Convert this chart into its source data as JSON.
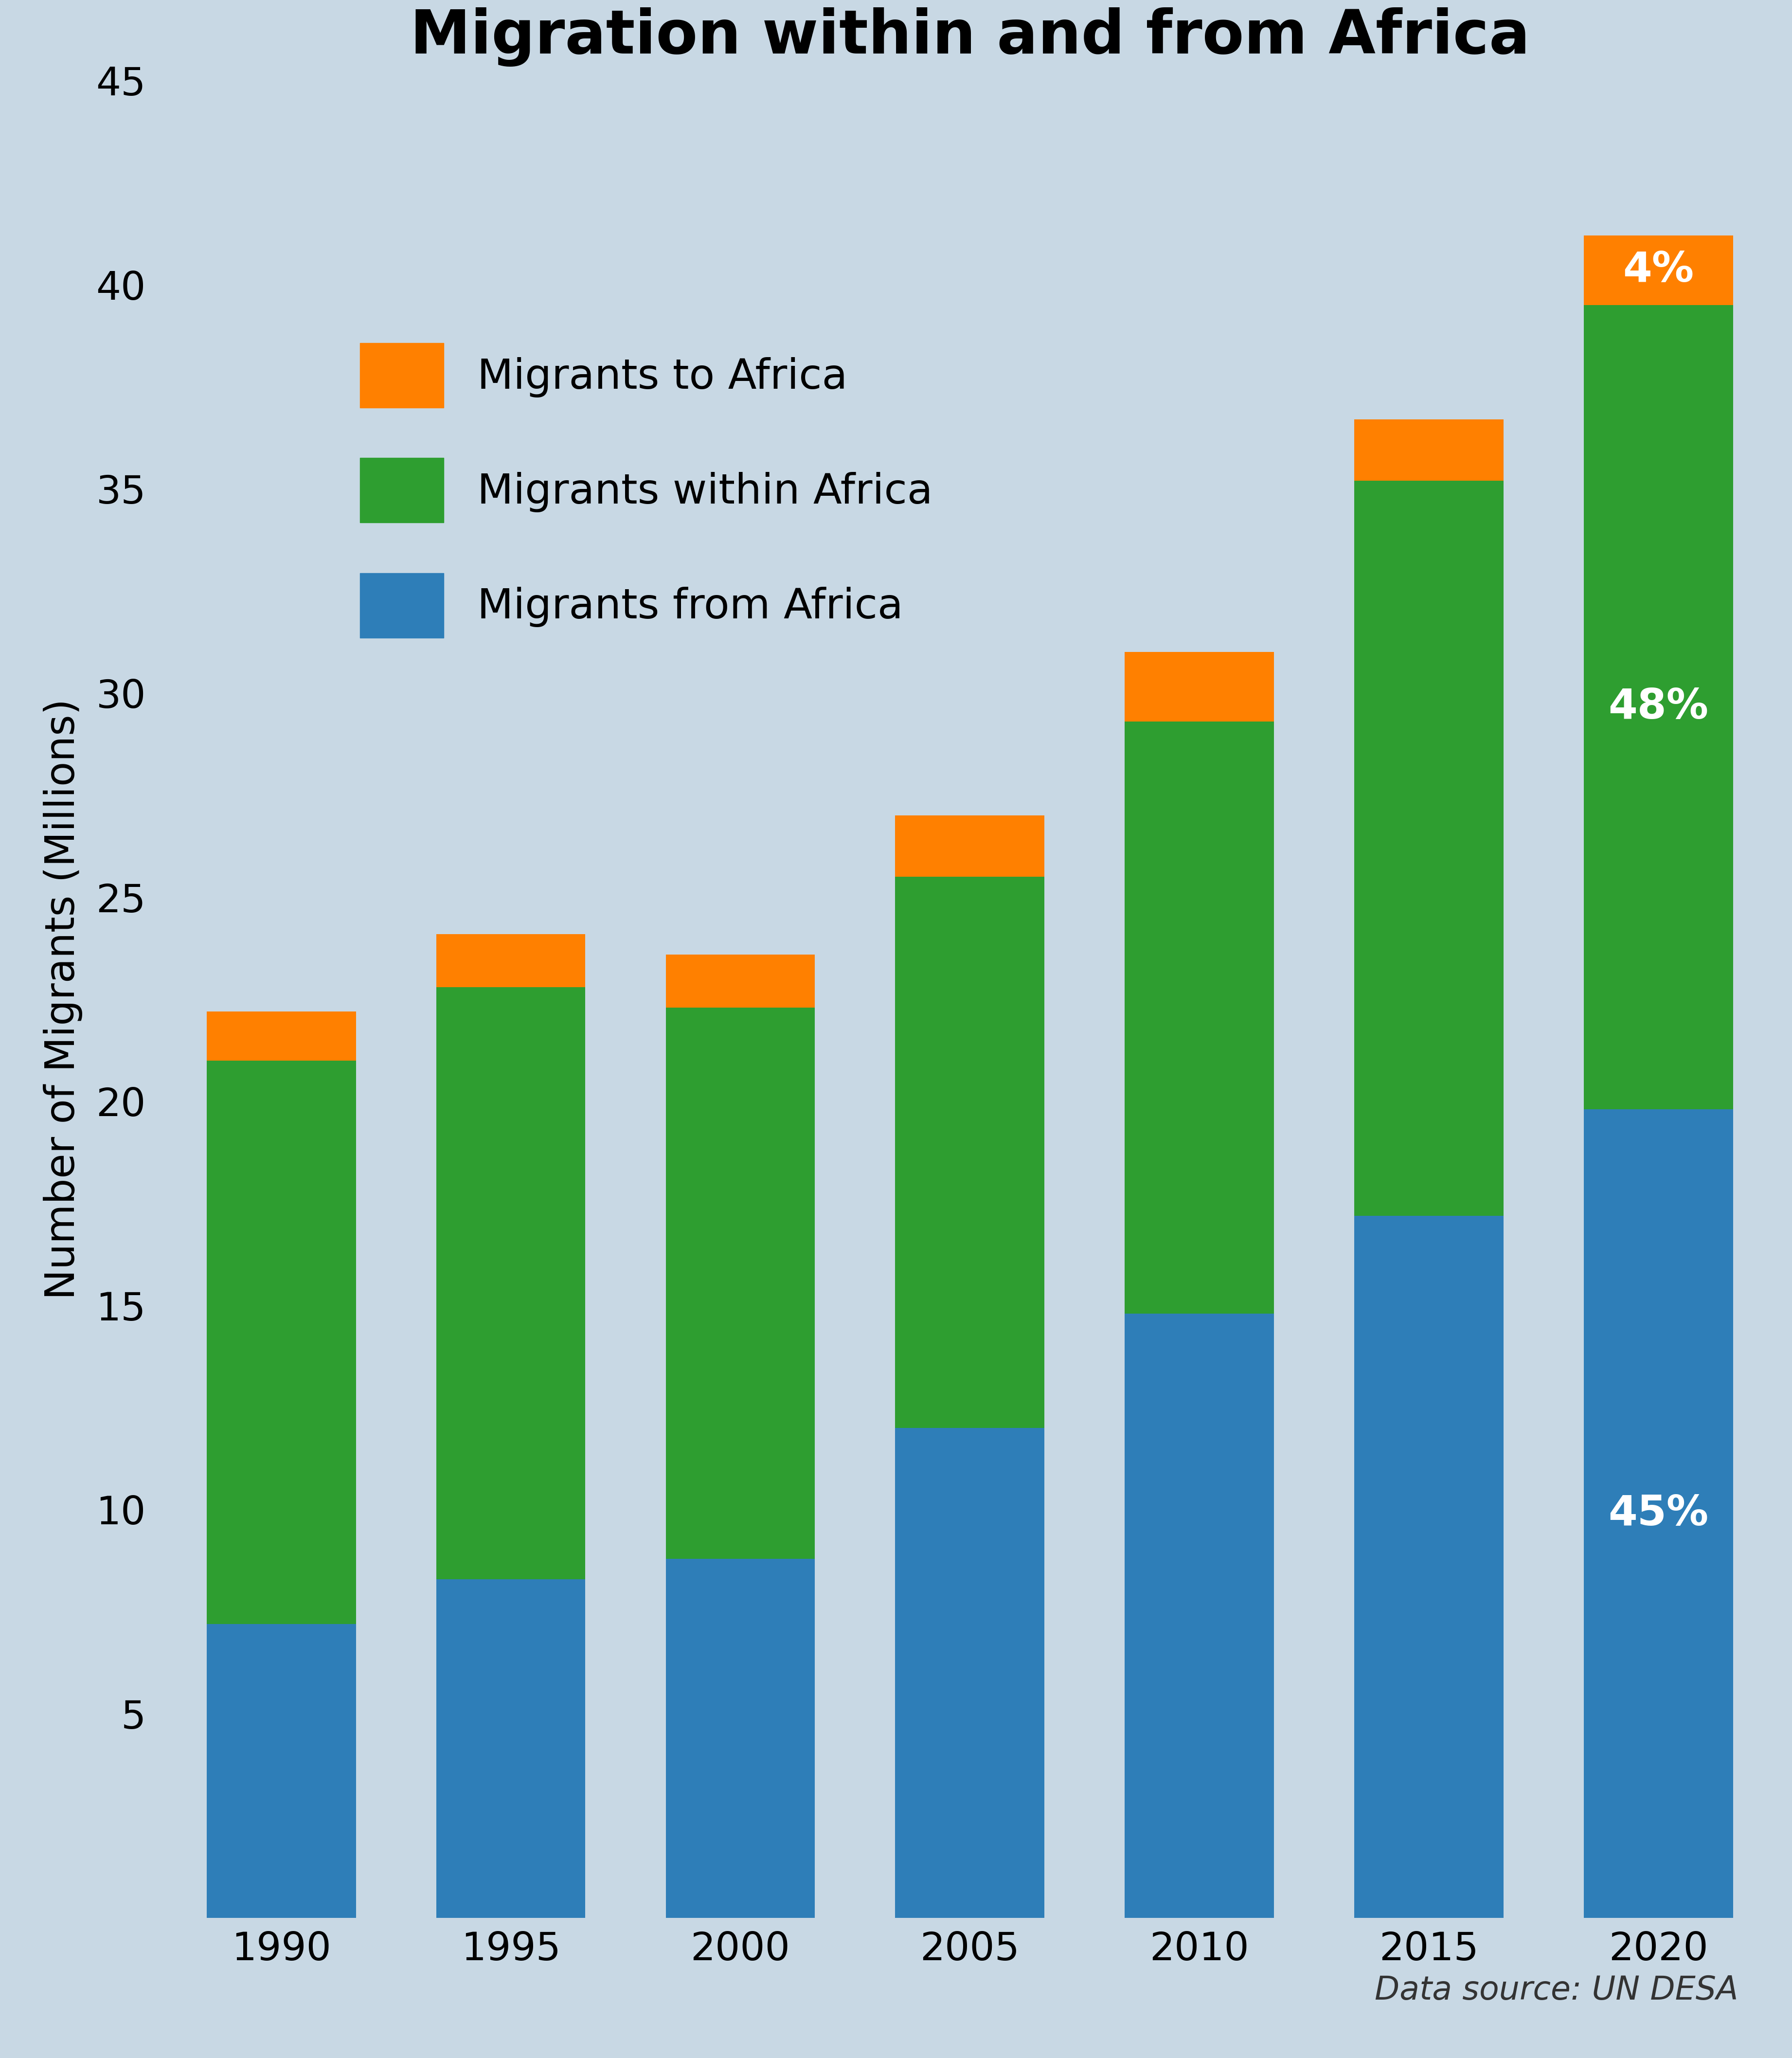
{
  "title": "Migration within and from Africa",
  "ylabel": "Number of Migrants (Millions)",
  "background_color": "#c8d8e4",
  "categories": [
    "1990",
    "1995",
    "2000",
    "2005",
    "2010",
    "2015",
    "2020"
  ],
  "migrants_from": [
    7.2,
    8.3,
    8.8,
    12.0,
    14.8,
    17.2,
    19.8
  ],
  "migrants_within": [
    13.8,
    14.5,
    13.5,
    13.5,
    14.5,
    18.0,
    19.7
  ],
  "migrants_to": [
    1.2,
    1.3,
    1.3,
    1.5,
    1.7,
    1.5,
    1.7
  ],
  "color_from": "#2e7eb8",
  "color_within": "#2e9e30",
  "color_to": "#ff8000",
  "ylim": [
    0,
    45
  ],
  "yticks": [
    5,
    10,
    15,
    20,
    25,
    30,
    35,
    40,
    45
  ],
  "legend_labels": [
    "Migrants to Africa",
    "Migrants within Africa",
    "Migrants from Africa"
  ],
  "datasource": "Data source: UN DESA",
  "title_fontsize": 90,
  "axis_fontsize": 60,
  "tick_fontsize": 58,
  "legend_fontsize": 62,
  "annotation_fontsize": 62,
  "datasource_fontsize": 48
}
